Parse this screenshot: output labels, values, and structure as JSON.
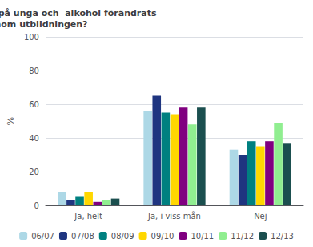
{
  "chart_data": {
    "type": "bar",
    "title": "Har ditt synsätt  på unga och  alkohol förändrats\ngenom utbildningen?",
    "ylabel": "%",
    "categories": [
      "Ja, helt",
      "Ja, i viss mån",
      "Nej"
    ],
    "series": [
      {
        "name": "06/07",
        "color": "#ADD8E6",
        "values": [
          8,
          56,
          33
        ]
      },
      {
        "name": "07/08",
        "color": "#1F3580",
        "values": [
          3,
          65,
          30
        ]
      },
      {
        "name": "08/09",
        "color": "#008080",
        "values": [
          5,
          55,
          38
        ]
      },
      {
        "name": "09/10",
        "color": "#FFD700",
        "values": [
          8,
          54,
          35
        ]
      },
      {
        "name": "10/11",
        "color": "#800080",
        "values": [
          2,
          58,
          38
        ]
      },
      {
        "name": "11/12",
        "color": "#90EE90",
        "values": [
          3,
          48,
          49
        ]
      },
      {
        "name": "12/13",
        "color": "#1B4F4F",
        "values": [
          4,
          58,
          37
        ]
      }
    ],
    "ylim": [
      0,
      100
    ],
    "yticks": [
      0,
      20,
      40,
      60,
      80,
      100
    ],
    "grid": true,
    "legend": "bottom"
  }
}
